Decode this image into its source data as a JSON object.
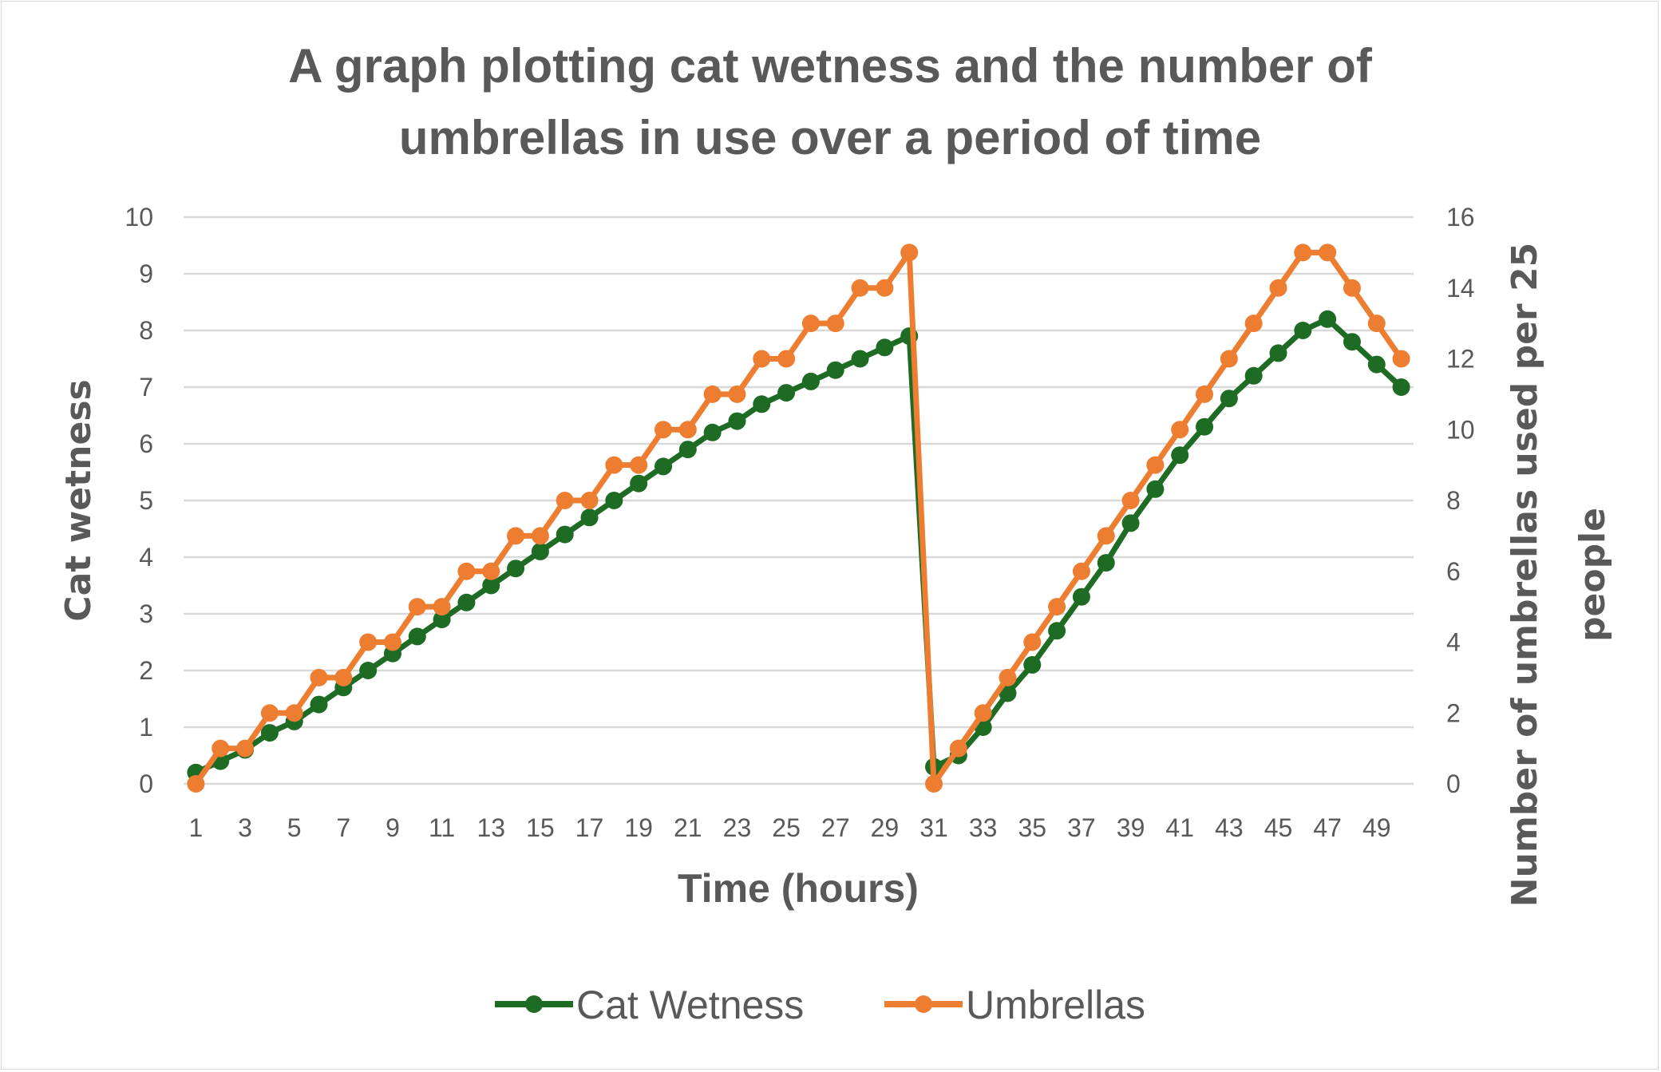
{
  "chart_data": {
    "type": "line",
    "title_lines": [
      "A graph plotting cat wetness and the number of",
      "umbrellas in use over a period of time"
    ],
    "xlabel": "Time (hours)",
    "ylabel": "Cat wetness",
    "y2label_lines": [
      "Number of umbrellas used per 25",
      "people"
    ],
    "x": [
      1,
      2,
      3,
      4,
      5,
      6,
      7,
      8,
      9,
      10,
      11,
      12,
      13,
      14,
      15,
      16,
      17,
      18,
      19,
      20,
      21,
      22,
      23,
      24,
      25,
      26,
      27,
      28,
      29,
      30,
      31,
      32,
      33,
      34,
      35,
      36,
      37,
      38,
      39,
      40,
      41,
      42,
      43,
      44,
      45,
      46,
      47,
      48,
      49,
      50
    ],
    "x_tick_labels": [
      "1",
      "3",
      "5",
      "7",
      "9",
      "11",
      "13",
      "15",
      "17",
      "19",
      "21",
      "23",
      "25",
      "27",
      "29",
      "31",
      "33",
      "35",
      "37",
      "39",
      "41",
      "43",
      "45",
      "47",
      "49"
    ],
    "ylim": [
      0,
      10
    ],
    "y_ticks": [
      "0",
      "1",
      "2",
      "3",
      "4",
      "5",
      "6",
      "7",
      "8",
      "9",
      "10"
    ],
    "y2lim": [
      0,
      16
    ],
    "y2_ticks": [
      "0",
      "2",
      "4",
      "6",
      "8",
      "10",
      "12",
      "14",
      "16"
    ],
    "grid": true,
    "legend_position": "bottom",
    "series": [
      {
        "name": "Cat Wetness",
        "axis": "left",
        "color": "#1e6b24",
        "values": [
          0.2,
          0.4,
          0.6,
          0.9,
          1.1,
          1.4,
          1.7,
          2.0,
          2.3,
          2.6,
          2.9,
          3.2,
          3.5,
          3.8,
          4.1,
          4.4,
          4.7,
          5.0,
          5.3,
          5.6,
          5.9,
          6.2,
          6.4,
          6.7,
          6.9,
          7.1,
          7.3,
          7.5,
          7.7,
          7.9,
          0.3,
          0.5,
          1.0,
          1.6,
          2.1,
          2.7,
          3.3,
          3.9,
          4.6,
          5.2,
          5.8,
          6.3,
          6.8,
          7.2,
          7.6,
          8.0,
          8.2,
          7.8,
          7.4,
          7.0
        ]
      },
      {
        "name": "Umbrellas",
        "axis": "right",
        "color": "#ed7d31",
        "values": [
          0,
          1,
          1,
          2,
          2,
          3,
          3,
          4,
          4,
          5,
          5,
          6,
          6,
          7,
          7,
          8,
          8,
          9,
          9,
          10,
          10,
          11,
          11,
          12,
          12,
          13,
          13,
          14,
          14,
          15,
          0,
          1,
          2,
          3,
          4,
          5,
          6,
          7,
          8,
          9,
          10,
          11,
          12,
          13,
          14,
          15,
          15,
          14,
          13,
          12
        ]
      }
    ]
  }
}
